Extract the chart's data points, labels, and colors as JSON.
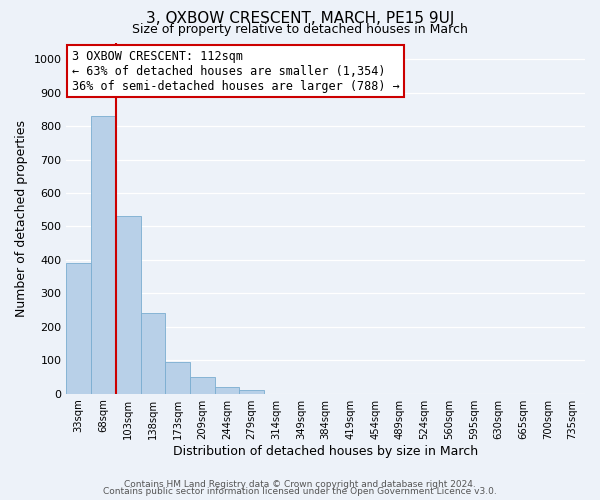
{
  "title": "3, OXBOW CRESCENT, MARCH, PE15 9UJ",
  "subtitle": "Size of property relative to detached houses in March",
  "xlabel": "Distribution of detached houses by size in March",
  "ylabel": "Number of detached properties",
  "bar_labels": [
    "33sqm",
    "68sqm",
    "103sqm",
    "138sqm",
    "173sqm",
    "209sqm",
    "244sqm",
    "279sqm",
    "314sqm",
    "349sqm",
    "384sqm",
    "419sqm",
    "454sqm",
    "489sqm",
    "524sqm",
    "560sqm",
    "595sqm",
    "630sqm",
    "665sqm",
    "700sqm",
    "735sqm"
  ],
  "bar_values": [
    390,
    830,
    530,
    240,
    95,
    50,
    20,
    10,
    0,
    0,
    0,
    0,
    0,
    0,
    0,
    0,
    0,
    0,
    0,
    0,
    0
  ],
  "bar_color": "#b8d0e8",
  "bar_edge_color": "#7aadd0",
  "vline_color": "#cc0000",
  "annotation_title": "3 OXBOW CRESCENT: 112sqm",
  "annotation_line1": "← 63% of detached houses are smaller (1,354)",
  "annotation_line2": "36% of semi-detached houses are larger (788) →",
  "annotation_box_color": "#ffffff",
  "annotation_box_edge": "#cc0000",
  "ylim": [
    0,
    1050
  ],
  "yticks": [
    0,
    100,
    200,
    300,
    400,
    500,
    600,
    700,
    800,
    900,
    1000
  ],
  "footer1": "Contains HM Land Registry data © Crown copyright and database right 2024.",
  "footer2": "Contains public sector information licensed under the Open Government Licence v3.0.",
  "background_color": "#edf2f9",
  "grid_color": "#ffffff",
  "title_fontsize": 11,
  "subtitle_fontsize": 9
}
